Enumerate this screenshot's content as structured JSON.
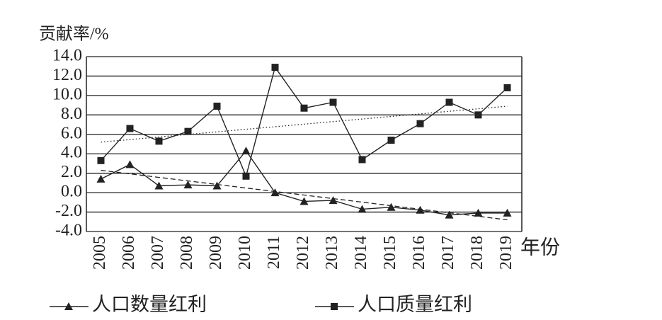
{
  "chart_data": {
    "type": "line",
    "y_label": "贡献率/%",
    "x_label": "年份",
    "categories": [
      "2005",
      "2006",
      "2007",
      "2008",
      "2009",
      "2010",
      "2011",
      "2012",
      "2013",
      "2014",
      "2015",
      "2016",
      "2017",
      "2018",
      "2019"
    ],
    "series": [
      {
        "name": "人口数量红利",
        "color": "#222222",
        "marker": "triangle",
        "values": [
          1.4,
          2.9,
          0.7,
          0.8,
          0.7,
          4.3,
          0.0,
          -0.9,
          -0.8,
          -1.7,
          -1.5,
          -1.8,
          -2.3,
          -2.1,
          -2.1
        ],
        "trend": [
          2.3,
          -2.8
        ],
        "trend_style": "dashed"
      },
      {
        "name": "人口质量红利",
        "color": "#222222",
        "marker": "square",
        "values": [
          3.3,
          6.6,
          5.3,
          6.3,
          8.9,
          1.7,
          12.9,
          8.7,
          9.3,
          3.4,
          5.4,
          7.1,
          9.3,
          8.0,
          10.8
        ],
        "trend": [
          5.2,
          8.9
        ],
        "trend_style": "dotted"
      }
    ],
    "ylim": [
      -4,
      14
    ],
    "yticks": [
      {
        "value": -4,
        "label": "-4.0"
      },
      {
        "value": -2,
        "label": "-2.0"
      },
      {
        "value": 0,
        "label": "0.0"
      },
      {
        "value": 2,
        "label": "2.0"
      },
      {
        "value": 4,
        "label": "4.0"
      },
      {
        "value": 6,
        "label": "6.0"
      },
      {
        "value": 8,
        "label": "8.0"
      },
      {
        "value": 10,
        "label": "10.0"
      },
      {
        "value": 12,
        "label": "12.0"
      },
      {
        "value": 14,
        "label": "14.0"
      }
    ],
    "grid": true
  }
}
